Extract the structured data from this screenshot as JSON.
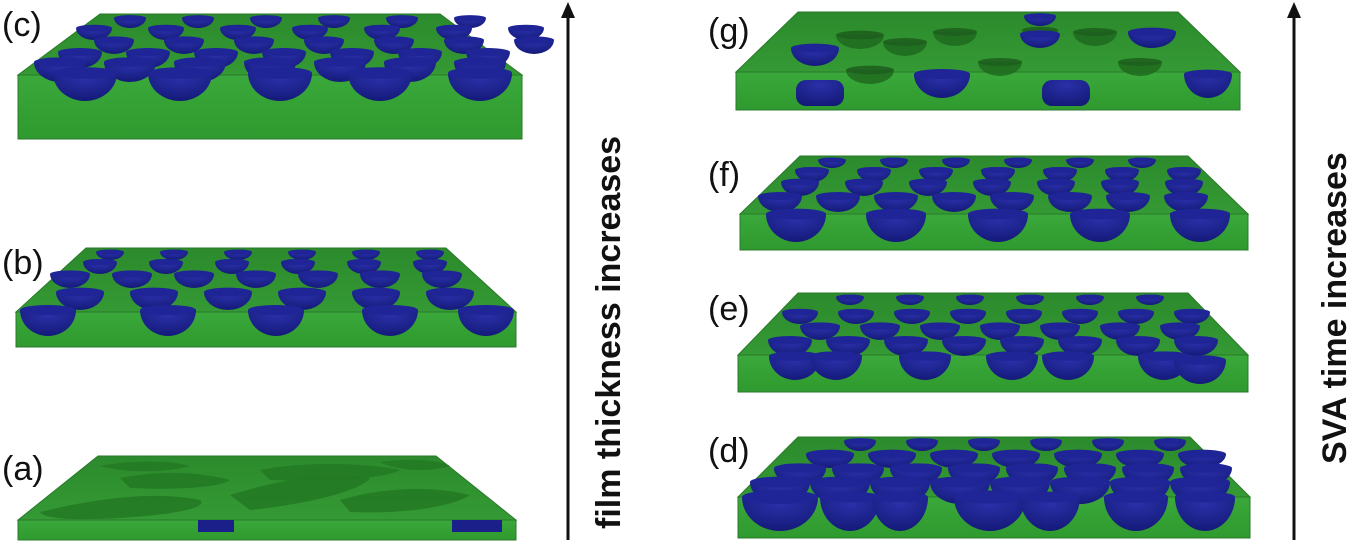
{
  "panels": {
    "a": "(a)",
    "b": "(b)",
    "c": "(c)",
    "d": "(d)",
    "e": "(e)",
    "f": "(f)",
    "g": "(g)"
  },
  "arrows": {
    "left": "film thickness increases",
    "right": "SVA time increases"
  },
  "colors": {
    "film_top": "#2f8f2f",
    "film_front": "#3aa83a",
    "film_shadow": "#246f24",
    "domain": "#1a1f8a",
    "domain_rim": "#2a2fb0",
    "embedded": "#1f6a1f"
  }
}
